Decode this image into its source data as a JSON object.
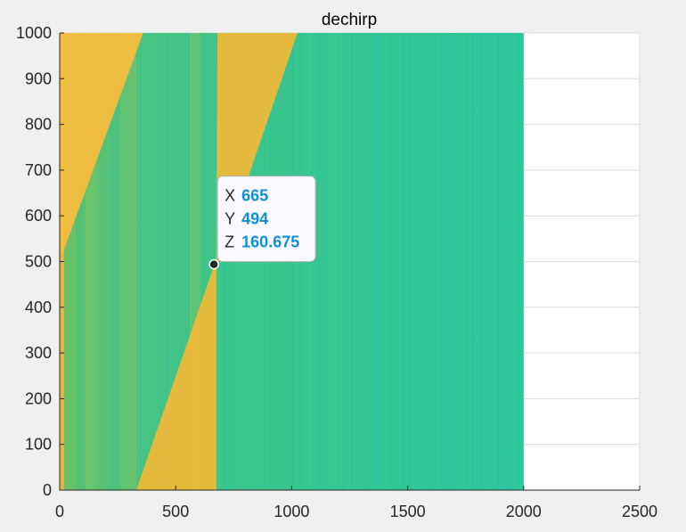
{
  "colors": {
    "figure_bg": "#f0f0f0",
    "axes_bg": "#ffffff",
    "grid": "#dcdcdc",
    "axis": "#262626",
    "hot": "#f2b836",
    "hot_light": "#f6bd3f",
    "cool": "#2cc49b",
    "mid": "#6cc46a",
    "tip_value": "#0f8fd6"
  },
  "chart_data": {
    "type": "heatmap",
    "title": "dechirp",
    "xlabel": "",
    "ylabel": "",
    "xlim": [
      0,
      2500
    ],
    "ylim": [
      0,
      1000
    ],
    "xticks": [
      0,
      500,
      1000,
      1500,
      2000,
      2500
    ],
    "yticks": [
      0,
      100,
      200,
      300,
      400,
      500,
      600,
      700,
      800,
      900,
      1000
    ],
    "xtick_labels": [
      "0",
      "500",
      "1000",
      "1500",
      "2000",
      "2500"
    ],
    "ytick_labels": [
      "0",
      "100",
      "200",
      "300",
      "400",
      "500",
      "600",
      "700",
      "800",
      "900",
      "1000"
    ],
    "grid": true,
    "image_extent": {
      "x": [
        0,
        2000
      ],
      "y": [
        0,
        1000
      ]
    },
    "features": {
      "hot_band_upper_left": [
        [
          0,
          500
        ],
        [
          0,
          1000
        ],
        [
          360,
          1000
        ]
      ],
      "hot_band_diagonal": [
        [
          330,
          0
        ],
        [
          675,
          0
        ],
        [
          675,
          480
        ],
        [
          1025,
          1000
        ],
        [
          680,
          1000
        ],
        [
          675,
          505
        ]
      ],
      "vertical_lines_x": [
        0,
        110,
        210,
        280,
        430,
        560,
        665,
        700
      ]
    },
    "datatip": {
      "x": 665,
      "y": 494,
      "z": 160.675,
      "labels": {
        "x": "X",
        "y": "Y",
        "z": "Z"
      },
      "x_text": "665",
      "y_text": "494",
      "z_text": "160.675"
    }
  }
}
